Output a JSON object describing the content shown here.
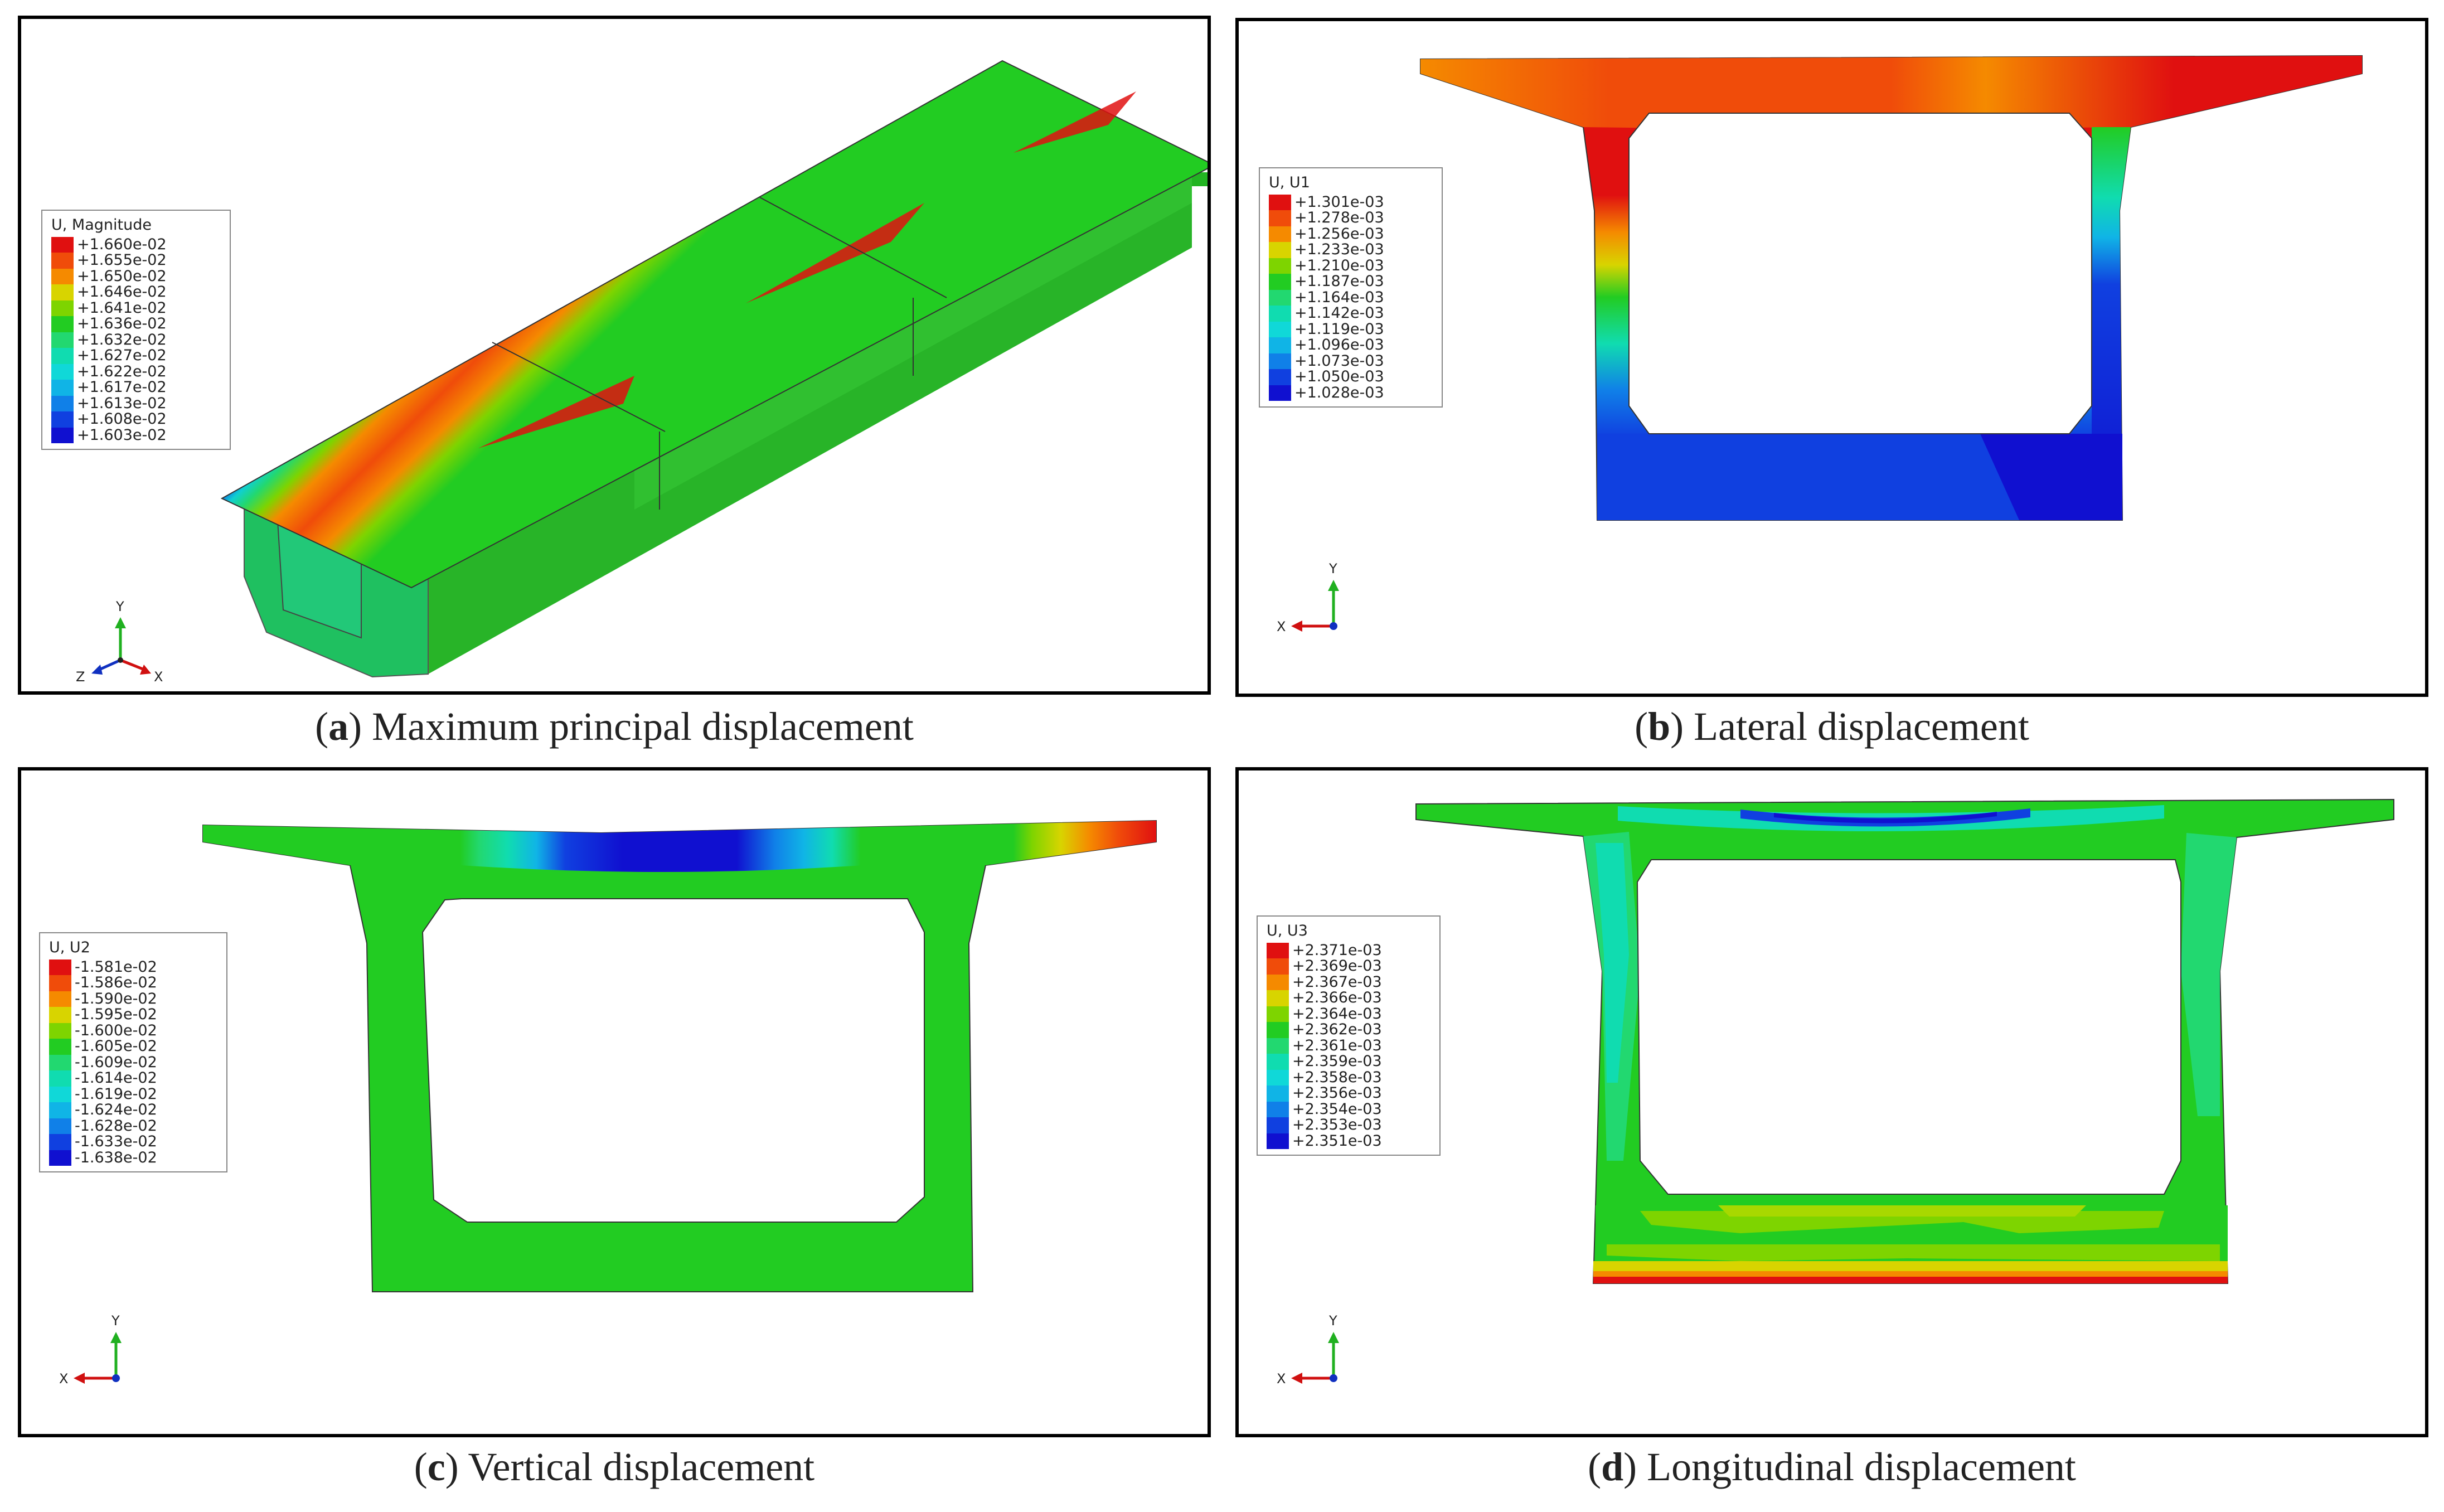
{
  "legend_colors": [
    "#e01010",
    "#f04c0a",
    "#f58a00",
    "#d8d400",
    "#7ed400",
    "#22cc22",
    "#22d870",
    "#10dcb0",
    "#10d8d8",
    "#10b4e6",
    "#1080e8",
    "#1040e0",
    "#1010d0"
  ],
  "panels": {
    "a": {
      "legend_title": "U, Magnitude",
      "legend_values": [
        "+1.660e-02",
        "+1.655e-02",
        "+1.650e-02",
        "+1.646e-02",
        "+1.641e-02",
        "+1.636e-02",
        "+1.632e-02",
        "+1.627e-02",
        "+1.622e-02",
        "+1.617e-02",
        "+1.613e-02",
        "+1.608e-02",
        "+1.603e-02"
      ],
      "axes": {
        "y": "Y",
        "x": "X",
        "z": "Z"
      },
      "caption_letter": "a",
      "caption_text": "Maximum principal displacement"
    },
    "b": {
      "legend_title": "U, U1",
      "legend_values": [
        "+1.301e-03",
        "+1.278e-03",
        "+1.256e-03",
        "+1.233e-03",
        "+1.210e-03",
        "+1.187e-03",
        "+1.164e-03",
        "+1.142e-03",
        "+1.119e-03",
        "+1.096e-03",
        "+1.073e-03",
        "+1.050e-03",
        "+1.028e-03"
      ],
      "axes": {
        "y": "Y",
        "x": "X"
      },
      "caption_letter": "b",
      "caption_text": "Lateral displacement"
    },
    "c": {
      "legend_title": "U, U2",
      "legend_values": [
        "-1.581e-02",
        "-1.586e-02",
        "-1.590e-02",
        "-1.595e-02",
        "-1.600e-02",
        "-1.605e-02",
        "-1.609e-02",
        "-1.614e-02",
        "-1.619e-02",
        "-1.624e-02",
        "-1.628e-02",
        "-1.633e-02",
        "-1.638e-02"
      ],
      "axes": {
        "y": "Y",
        "x": "X"
      },
      "caption_letter": "c",
      "caption_text": "Vertical displacement"
    },
    "d": {
      "legend_title": "U, U3",
      "legend_values": [
        "+2.371e-03",
        "+2.369e-03",
        "+2.367e-03",
        "+2.366e-03",
        "+2.364e-03",
        "+2.362e-03",
        "+2.361e-03",
        "+2.359e-03",
        "+2.358e-03",
        "+2.356e-03",
        "+2.354e-03",
        "+2.353e-03",
        "+2.351e-03"
      ],
      "axes": {
        "y": "Y",
        "x": "X"
      },
      "caption_letter": "d",
      "caption_text": "Longitudinal displacement"
    }
  }
}
